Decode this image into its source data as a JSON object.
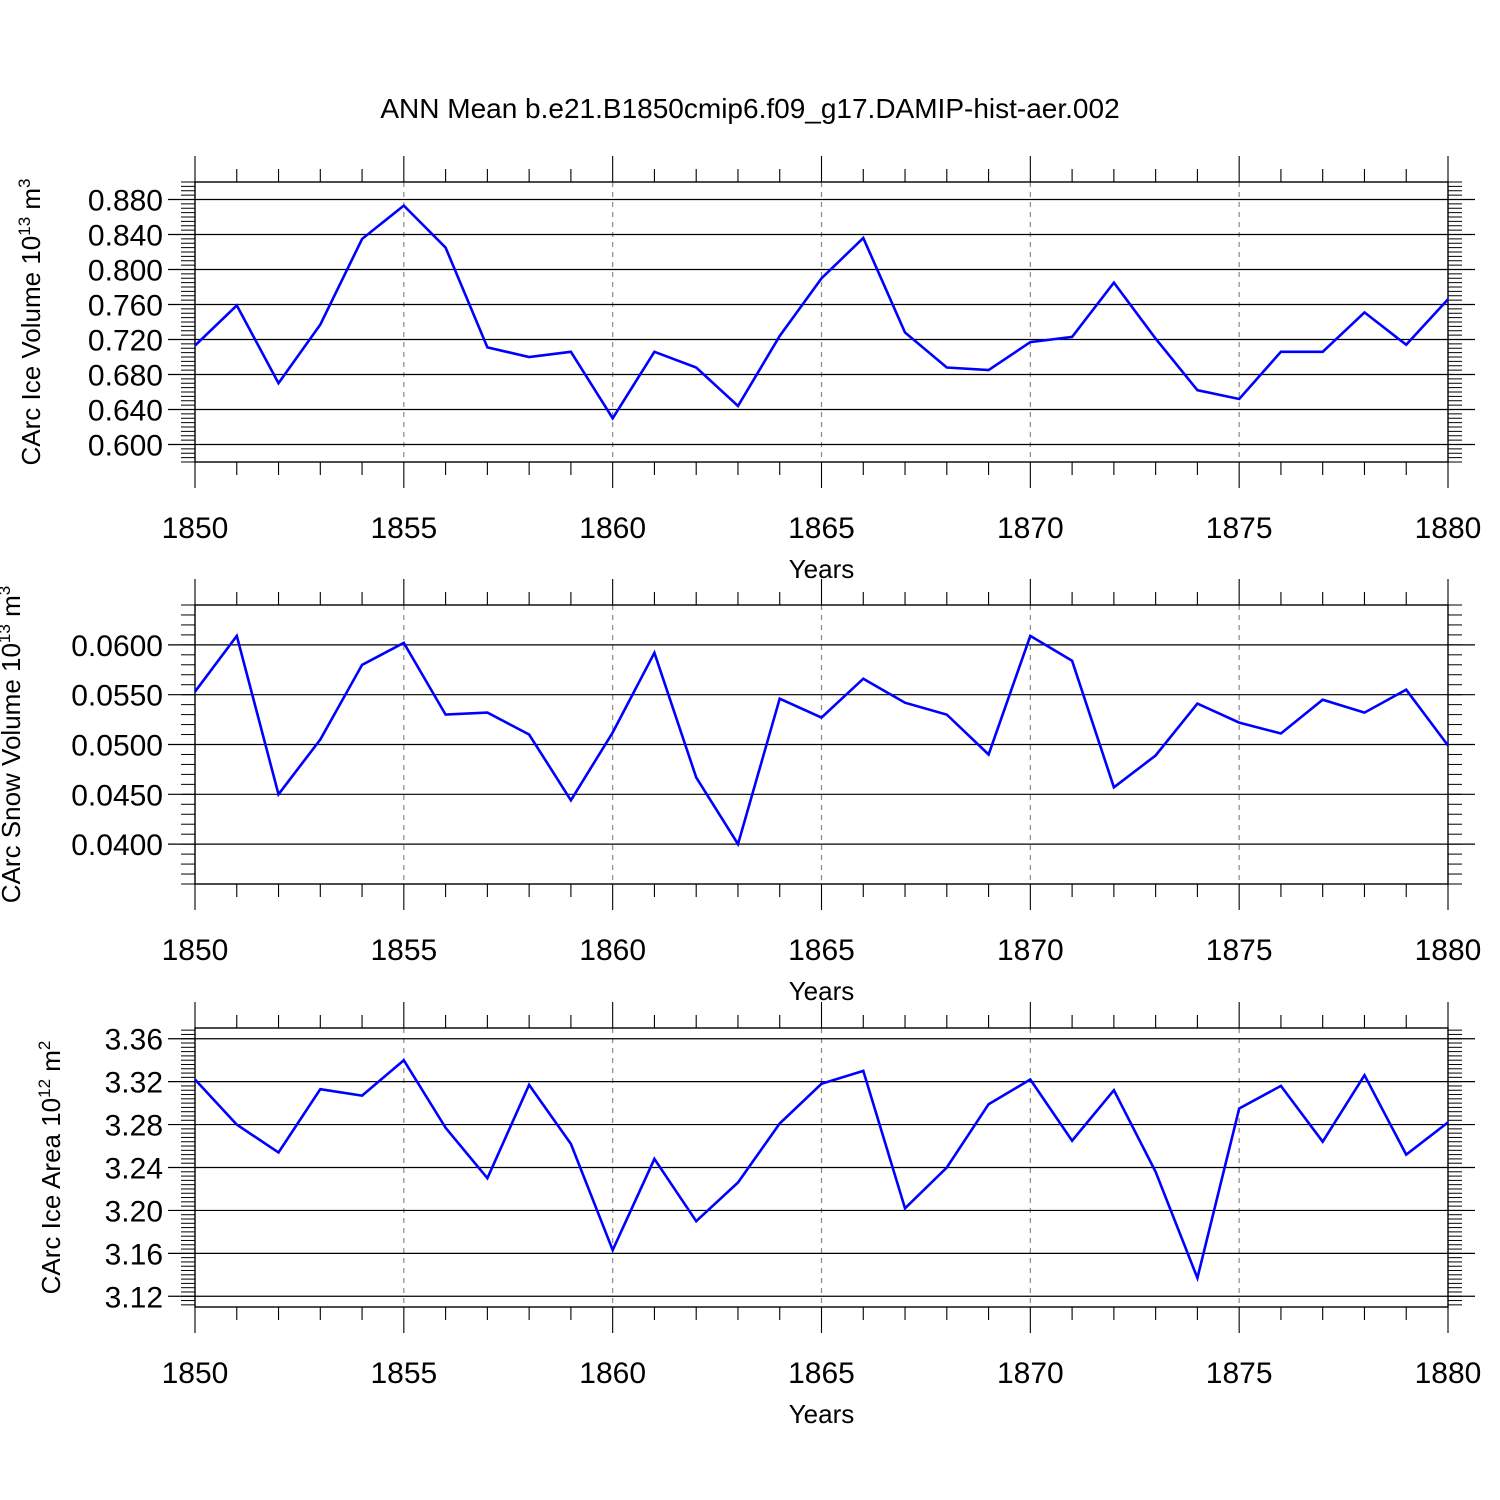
{
  "title": "ANN Mean b.e21.B1850cmip6.f09_g17.DAMIP-hist-aer.002",
  "line_color": "#0000ff",
  "chart_data": [
    {
      "type": "line",
      "ylabel_main": "CArc Ice Volume 10",
      "ylabel_exp": "13",
      "ylabel_unit": " m",
      "ylabel_unit_exp": "3",
      "xlabel": "Years",
      "xlim": [
        1850,
        1880
      ],
      "ylim": [
        0.58,
        0.9
      ],
      "yticks": [
        0.6,
        0.64,
        0.68,
        0.72,
        0.76,
        0.8,
        0.84,
        0.88
      ],
      "ytick_labels": [
        "0.600",
        "0.640",
        "0.680",
        "0.720",
        "0.760",
        "0.800",
        "0.840",
        "0.880"
      ],
      "xticks": [
        1850,
        1855,
        1860,
        1865,
        1870,
        1875,
        1880
      ],
      "xtick_labels": [
        "1850",
        "1855",
        "1860",
        "1865",
        "1870",
        "1875",
        "1880"
      ],
      "x": [
        1850,
        1851,
        1852,
        1853,
        1854,
        1855,
        1856,
        1857,
        1858,
        1859,
        1860,
        1861,
        1862,
        1863,
        1864,
        1865,
        1866,
        1867,
        1868,
        1869,
        1870,
        1871,
        1872,
        1873,
        1874,
        1875,
        1876,
        1877,
        1878,
        1879,
        1880
      ],
      "values": [
        0.713,
        0.759,
        0.67,
        0.737,
        0.835,
        0.873,
        0.825,
        0.711,
        0.7,
        0.706,
        0.63,
        0.706,
        0.688,
        0.644,
        0.724,
        0.79,
        0.836,
        0.728,
        0.688,
        0.685,
        0.717,
        0.723,
        0.785,
        0.721,
        0.662,
        0.652,
        0.706,
        0.706,
        0.751,
        0.714,
        0.766
      ]
    },
    {
      "type": "line",
      "ylabel_main": "CArc Snow Volume 10",
      "ylabel_exp": "13",
      "ylabel_unit": " m",
      "ylabel_unit_exp": "3",
      "xlabel": "Years",
      "xlim": [
        1850,
        1880
      ],
      "ylim": [
        0.036,
        0.064
      ],
      "yticks": [
        0.04,
        0.045,
        0.05,
        0.055,
        0.06
      ],
      "ytick_labels": [
        "0.0400",
        "0.0450",
        "0.0500",
        "0.0550",
        "0.0600"
      ],
      "xticks": [
        1850,
        1855,
        1860,
        1865,
        1870,
        1875,
        1880
      ],
      "xtick_labels": [
        "1850",
        "1855",
        "1860",
        "1865",
        "1870",
        "1875",
        "1880"
      ],
      "x": [
        1850,
        1851,
        1852,
        1853,
        1854,
        1855,
        1856,
        1857,
        1858,
        1859,
        1860,
        1861,
        1862,
        1863,
        1864,
        1865,
        1866,
        1867,
        1868,
        1869,
        1870,
        1871,
        1872,
        1873,
        1874,
        1875,
        1876,
        1877,
        1878,
        1879,
        1880
      ],
      "values": [
        0.0553,
        0.0609,
        0.045,
        0.0505,
        0.058,
        0.0602,
        0.053,
        0.0532,
        0.051,
        0.0444,
        0.0512,
        0.0592,
        0.0467,
        0.04,
        0.0546,
        0.0527,
        0.0566,
        0.0542,
        0.053,
        0.049,
        0.0609,
        0.0584,
        0.0457,
        0.0489,
        0.0541,
        0.0522,
        0.0511,
        0.0545,
        0.0532,
        0.0555,
        0.0499
      ]
    },
    {
      "type": "line",
      "ylabel_main": "CArc Ice Area 10",
      "ylabel_exp": "12",
      "ylabel_unit": " m",
      "ylabel_unit_exp": "2",
      "xlabel": "Years",
      "xlim": [
        1850,
        1880
      ],
      "ylim": [
        3.11,
        3.37
      ],
      "yticks": [
        3.12,
        3.16,
        3.2,
        3.24,
        3.28,
        3.32,
        3.36
      ],
      "ytick_labels": [
        "3.12",
        "3.16",
        "3.20",
        "3.24",
        "3.28",
        "3.32",
        "3.36"
      ],
      "xticks": [
        1850,
        1855,
        1860,
        1865,
        1870,
        1875,
        1880
      ],
      "xtick_labels": [
        "1850",
        "1855",
        "1860",
        "1865",
        "1870",
        "1875",
        "1880"
      ],
      "x": [
        1850,
        1851,
        1852,
        1853,
        1854,
        1855,
        1856,
        1857,
        1858,
        1859,
        1860,
        1861,
        1862,
        1863,
        1864,
        1865,
        1866,
        1867,
        1868,
        1869,
        1870,
        1871,
        1872,
        1873,
        1874,
        1875,
        1876,
        1877,
        1878,
        1879,
        1880
      ],
      "values": [
        3.322,
        3.28,
        3.254,
        3.313,
        3.307,
        3.34,
        3.277,
        3.23,
        3.317,
        3.262,
        3.163,
        3.248,
        3.19,
        3.226,
        3.281,
        3.318,
        3.33,
        3.202,
        3.24,
        3.299,
        3.322,
        3.265,
        3.312,
        3.236,
        3.137,
        3.295,
        3.316,
        3.264,
        3.326,
        3.252,
        3.282
      ]
    }
  ]
}
